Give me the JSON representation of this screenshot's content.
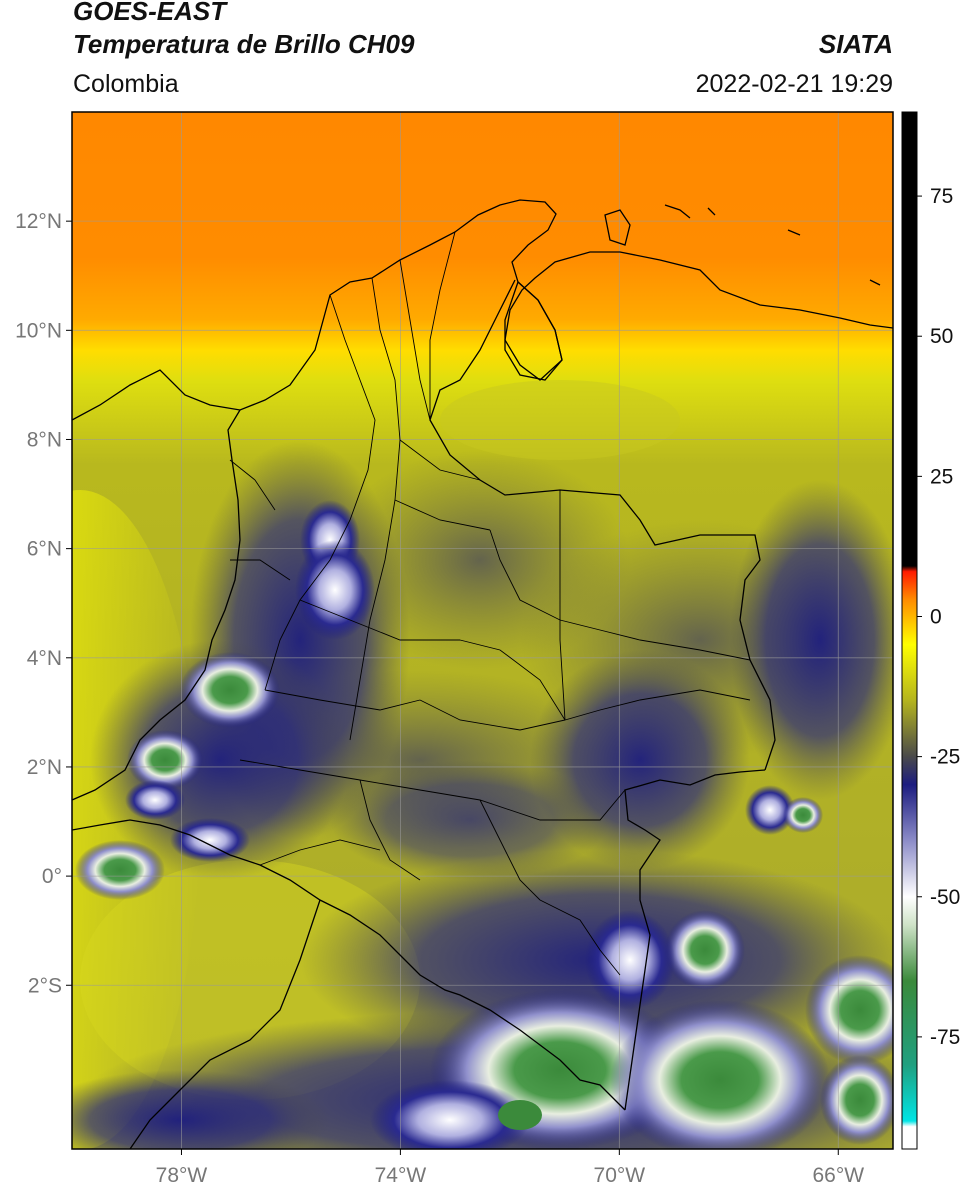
{
  "header": {
    "satellite": "GOES-EAST",
    "product": "Temperatura de Brillo CH09",
    "region": "Colombia",
    "organization": "SIATA",
    "timestamp": "2022-02-21 19:29"
  },
  "map": {
    "lon_range": [
      -80.0,
      -65.0
    ],
    "lat_range": [
      -5.0,
      14.0
    ],
    "lat_ticks": [
      {
        "value": 12,
        "label": "12°N"
      },
      {
        "value": 10,
        "label": "10°N"
      },
      {
        "value": 8,
        "label": "8°N"
      },
      {
        "value": 6,
        "label": "6°N"
      },
      {
        "value": 4,
        "label": "4°N"
      },
      {
        "value": 2,
        "label": "2°N"
      },
      {
        "value": 0,
        "label": "0°"
      },
      {
        "value": -2,
        "label": "2°S"
      }
    ],
    "lon_ticks": [
      {
        "value": -78,
        "label": "78°W"
      },
      {
        "value": -74,
        "label": "74°W"
      },
      {
        "value": -70,
        "label": "70°W"
      },
      {
        "value": -66,
        "label": "66°W"
      }
    ],
    "grid": true
  },
  "colorbar": {
    "range": [
      -95,
      90
    ],
    "ticks": [
      {
        "value": 75,
        "label": "75"
      },
      {
        "value": 50,
        "label": "50"
      },
      {
        "value": 25,
        "label": "25"
      },
      {
        "value": 0,
        "label": "0"
      },
      {
        "value": -25,
        "label": "-25"
      },
      {
        "value": -50,
        "label": "-50"
      },
      {
        "value": -75,
        "label": "-75"
      }
    ],
    "stops": [
      {
        "value": -95,
        "color": "#ffffff"
      },
      {
        "value": -91,
        "color": "#ffffff"
      },
      {
        "value": -90,
        "color": "#00e5e5"
      },
      {
        "value": -80,
        "color": "#20a080"
      },
      {
        "value": -65,
        "color": "#3b8a3b"
      },
      {
        "value": -55,
        "color": "#cfe3c8"
      },
      {
        "value": -50,
        "color": "#ffffff"
      },
      {
        "value": -40,
        "color": "#8c8cc8"
      },
      {
        "value": -30,
        "color": "#1c1c80"
      },
      {
        "value": -25,
        "color": "#4a4a4a"
      },
      {
        "value": -15,
        "color": "#b4b41e"
      },
      {
        "value": -5,
        "color": "#ffff00"
      },
      {
        "value": 3,
        "color": "#ff8c00"
      },
      {
        "value": 8,
        "color": "#ff1a00"
      },
      {
        "value": 9,
        "color": "#000000"
      },
      {
        "value": 90,
        "color": "#000000"
      }
    ]
  }
}
